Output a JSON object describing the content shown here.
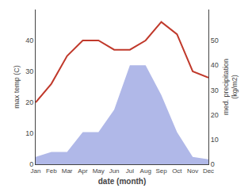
{
  "chart_data": {
    "type": "line",
    "xlabel": "date (month)",
    "ylabel": "max temp (C)",
    "y2label": "med. precipitation\n(kg/m2)",
    "categories": [
      "Jan",
      "Feb",
      "Mar",
      "Apr",
      "May",
      "Jun",
      "Jul",
      "Aug",
      "Sep",
      "Oct",
      "Nov",
      "Dec"
    ],
    "series": [
      {
        "type": "area",
        "axis": "y2",
        "color": "#b0b8e8",
        "values": [
          3,
          5,
          5,
          13,
          13,
          22,
          40,
          40,
          28,
          13,
          3,
          2
        ]
      },
      {
        "type": "line",
        "color": "#c0392b",
        "values": [
          20,
          26,
          35,
          40,
          40,
          37,
          37,
          40,
          46,
          42,
          30,
          28
        ]
      }
    ],
    "ylim": [
      0,
      50
    ],
    "yticks": [
      0,
      10,
      20,
      30,
      40
    ],
    "y2lim": [
      0,
      62.5
    ],
    "y2ticks": [
      0,
      10,
      20,
      30,
      40,
      50
    ],
    "grid": false
  }
}
